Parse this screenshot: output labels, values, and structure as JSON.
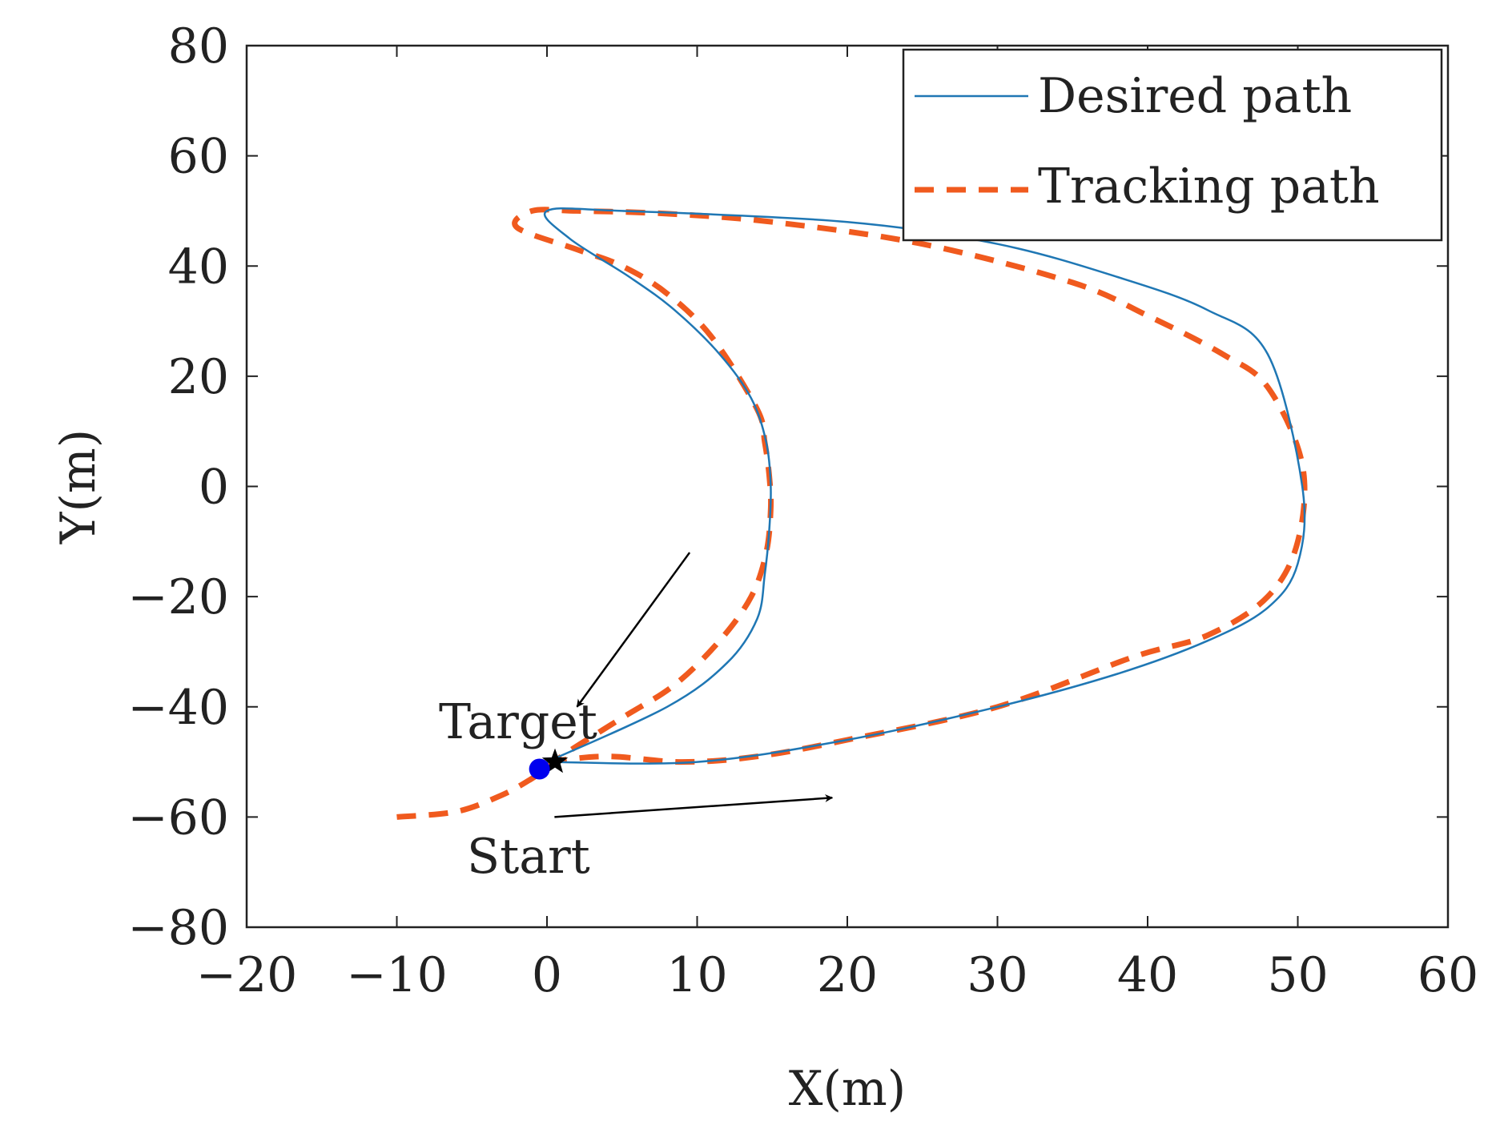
{
  "chart_data": {
    "type": "line",
    "title": "",
    "xlabel": "X(m)",
    "ylabel": "Y(m)",
    "xlim": [
      -20,
      60
    ],
    "ylim": [
      -80,
      80
    ],
    "xticks": [
      -20,
      -10,
      0,
      10,
      20,
      30,
      40,
      50,
      60
    ],
    "yticks": [
      -80,
      -60,
      -40,
      -20,
      0,
      20,
      40,
      60,
      80
    ],
    "xtick_labels": [
      "−20",
      "−10",
      "0",
      "10",
      "20",
      "30",
      "40",
      "50",
      "60"
    ],
    "ytick_labels": [
      "−80",
      "−60",
      "−40",
      "−20",
      "0",
      "20",
      "40",
      "60",
      "80"
    ],
    "grid": false,
    "legend_position": "top-right",
    "colors": {
      "desired": "#1f77b4",
      "tracking": "#f05a1e",
      "marker": "#0000ee",
      "annotation": "#000000"
    },
    "series": [
      {
        "name": "Desired path",
        "style": "solid",
        "x": [
          0,
          8,
          12,
          14,
          14.5,
          14.8,
          14.9,
          14.6,
          13.6,
          11.5,
          8.5,
          5.5,
          1.5,
          0,
          5,
          20,
          30,
          38,
          44,
          48,
          50.3,
          50,
          48,
          44,
          38,
          30,
          20,
          10,
          0
        ],
        "y": [
          -50,
          -40,
          -32,
          -24,
          -16,
          -8,
          0,
          8,
          16,
          24,
          32,
          38,
          45,
          50,
          50,
          48,
          44,
          38,
          32,
          24,
          0,
          -14,
          -22,
          -28,
          -34,
          -40,
          -46,
          -50,
          -50
        ]
      },
      {
        "name": "Tracking path",
        "style": "dashed",
        "x": [
          -10,
          -6,
          -3,
          -1,
          0,
          1.5,
          5,
          8.5,
          11.5,
          13.6,
          14.6,
          14.9,
          14.8,
          14.5,
          14,
          11,
          8,
          5,
          2,
          -2,
          -1,
          2,
          8,
          15,
          25,
          35,
          40,
          45,
          48,
          50.3,
          50,
          48,
          44,
          39,
          30,
          20,
          14,
          9,
          4,
          0
        ],
        "y": [
          -60,
          -59,
          -56,
          -53,
          -51,
          -48,
          -42,
          -36,
          -28,
          -20,
          -12,
          -4,
          2,
          8,
          14,
          27,
          35,
          40,
          43,
          47,
          50,
          50,
          49.5,
          48,
          44,
          37,
          31,
          24,
          18,
          4,
          -10,
          -20,
          -27,
          -31,
          -40,
          -46,
          -49,
          -50,
          -49,
          -50
        ]
      }
    ],
    "annotations": [
      {
        "text": "Target",
        "x": 0,
        "y": -50
      },
      {
        "text": "Start",
        "x": 0,
        "y": -51
      }
    ],
    "arrows": [
      {
        "from": [
          9.5,
          -12
        ],
        "to": [
          2,
          -40
        ]
      },
      {
        "from": [
          0.5,
          -60
        ],
        "to": [
          19,
          -56.5
        ]
      }
    ],
    "markers": [
      {
        "name": "target-star",
        "x": 0,
        "y": -50
      },
      {
        "name": "start-dot",
        "x": -0.5,
        "y": -51
      }
    ]
  }
}
